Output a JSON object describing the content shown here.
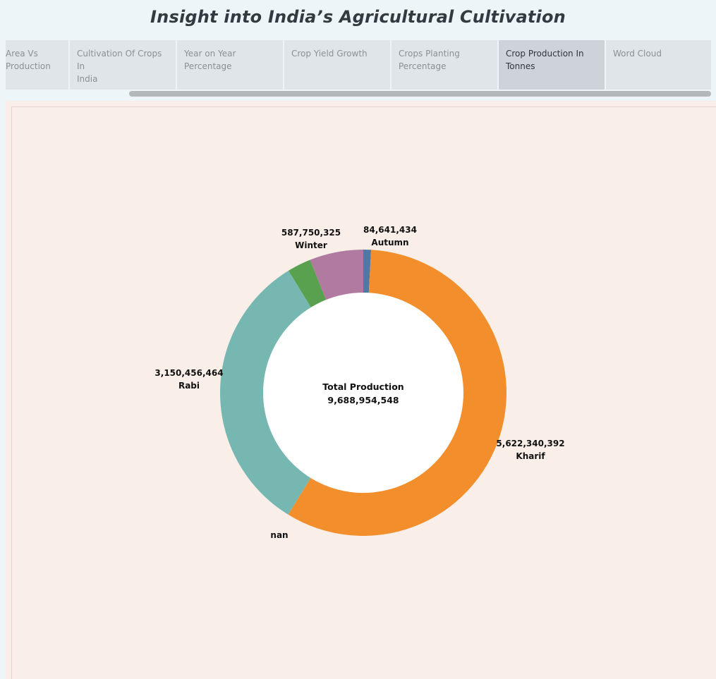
{
  "page": {
    "title": "Insight into India’s Agricultural Cultivation"
  },
  "tabs": [
    {
      "label": "Area Vs Production",
      "line1": "Area Vs",
      "line2": "Production",
      "active": false
    },
    {
      "label": "Cultivation Of Crops In India",
      "line1": "Cultivation Of Crops In",
      "line2": "India",
      "active": false
    },
    {
      "label": "Year on Year Percentage",
      "line1": "Year on Year",
      "line2": "Percentage",
      "active": false
    },
    {
      "label": "Crop Yield Growth",
      "line1": "Crop Yield Growth",
      "line2": "",
      "active": false
    },
    {
      "label": "Crops Planting Percentage",
      "line1": "Crops Planting",
      "line2": "Percentage",
      "active": false
    },
    {
      "label": "Crop Production In Tonnes",
      "line1": "Crop Production In",
      "line2": "Tonnes",
      "active": true
    },
    {
      "label": "Word Cloud",
      "line1": "Word Cloud",
      "line2": "",
      "active": false
    }
  ],
  "chart_data": {
    "type": "pie",
    "style": "donut",
    "center_label": "Total Production",
    "center_value": "9,688,954,548",
    "total": 9688954548,
    "slices": [
      {
        "name": "Autumn",
        "value": 84641434,
        "value_label": "84,641,434",
        "color": "#4e79a7"
      },
      {
        "name": "Kharif",
        "value": 5622340392,
        "value_label": "5,622,340,392",
        "color": "#f28e2b"
      },
      {
        "name": "Rabi",
        "value": 3150456464,
        "value_label": "3,150,456,464",
        "color": "#76b7b2"
      },
      {
        "name": "nan",
        "value": 0.027,
        "value_label": "",
        "color": "#59a14f",
        "value_is_fraction_estimate": true
      },
      {
        "name": "Winter",
        "value": 587750325,
        "value_label": "587,750,325",
        "color": "#b07aa1"
      }
    ]
  }
}
